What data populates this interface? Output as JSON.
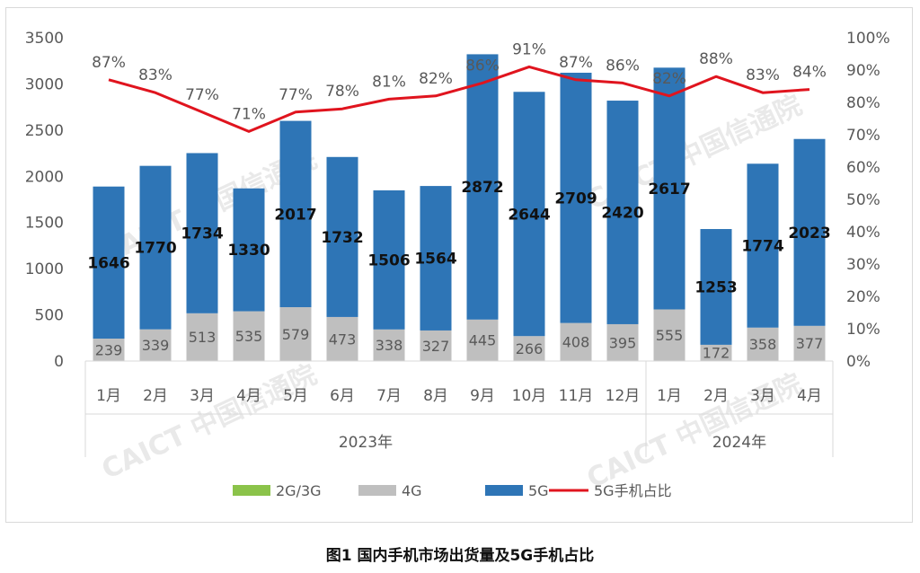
{
  "caption": "图1   国内手机市场出货量及5G手机占比",
  "watermark": "CAICT 中国信通院",
  "chart_data": {
    "type": "bar",
    "stacked": true,
    "categories": [
      "1月",
      "2月",
      "3月",
      "4月",
      "5月",
      "6月",
      "7月",
      "8月",
      "9月",
      "10月",
      "11月",
      "12月",
      "1月",
      "2月",
      "3月",
      "4月"
    ],
    "groups": [
      {
        "label": "2023年",
        "count": 12
      },
      {
        "label": "2024年",
        "count": 4
      }
    ],
    "series": [
      {
        "name": "2G/3G",
        "type": "bar",
        "color": "#8bc34a",
        "values": [
          4,
          4,
          4,
          4,
          4,
          4,
          4,
          4,
          4,
          4,
          4,
          4,
          4,
          4,
          4,
          4
        ]
      },
      {
        "name": "4G",
        "type": "bar",
        "color": "#bfbfbf",
        "values": [
          239,
          339,
          513,
          535,
          579,
          473,
          338,
          327,
          445,
          266,
          408,
          395,
          555,
          172,
          358,
          377
        ]
      },
      {
        "name": "5G",
        "type": "bar",
        "color": "#2e75b6",
        "values": [
          1646,
          1770,
          1734,
          1330,
          2017,
          1732,
          1506,
          1564,
          2872,
          2644,
          2709,
          2420,
          2617,
          1253,
          1774,
          2023
        ]
      },
      {
        "name": "5G手机占比",
        "type": "line",
        "axis": "right",
        "color": "#e0141e",
        "values": [
          87,
          83,
          77,
          71,
          77,
          78,
          81,
          82,
          86,
          91,
          87,
          86,
          82,
          88,
          83,
          84
        ]
      }
    ],
    "pct_labels": [
      "87%",
      "83%",
      "77%",
      "71%",
      "77%",
      "78%",
      "81%",
      "82%",
      "86%",
      "91%",
      "87%",
      "86%",
      "82%",
      "88%",
      "83%",
      "84%"
    ],
    "y_left": {
      "min": 0,
      "max": 3500,
      "ticks": [
        "0",
        "500",
        "1000",
        "1500",
        "2000",
        "2500",
        "3000",
        "3500"
      ]
    },
    "y_right": {
      "min": 0,
      "max": 100,
      "ticks": [
        "0%",
        "10%",
        "20%",
        "30%",
        "40%",
        "50%",
        "60%",
        "70%",
        "80%",
        "90%",
        "100%"
      ]
    },
    "grid": false,
    "legend": {
      "position": "bottom",
      "items": [
        "2G/3G",
        "4G",
        "5G",
        "5G手机占比"
      ]
    }
  }
}
